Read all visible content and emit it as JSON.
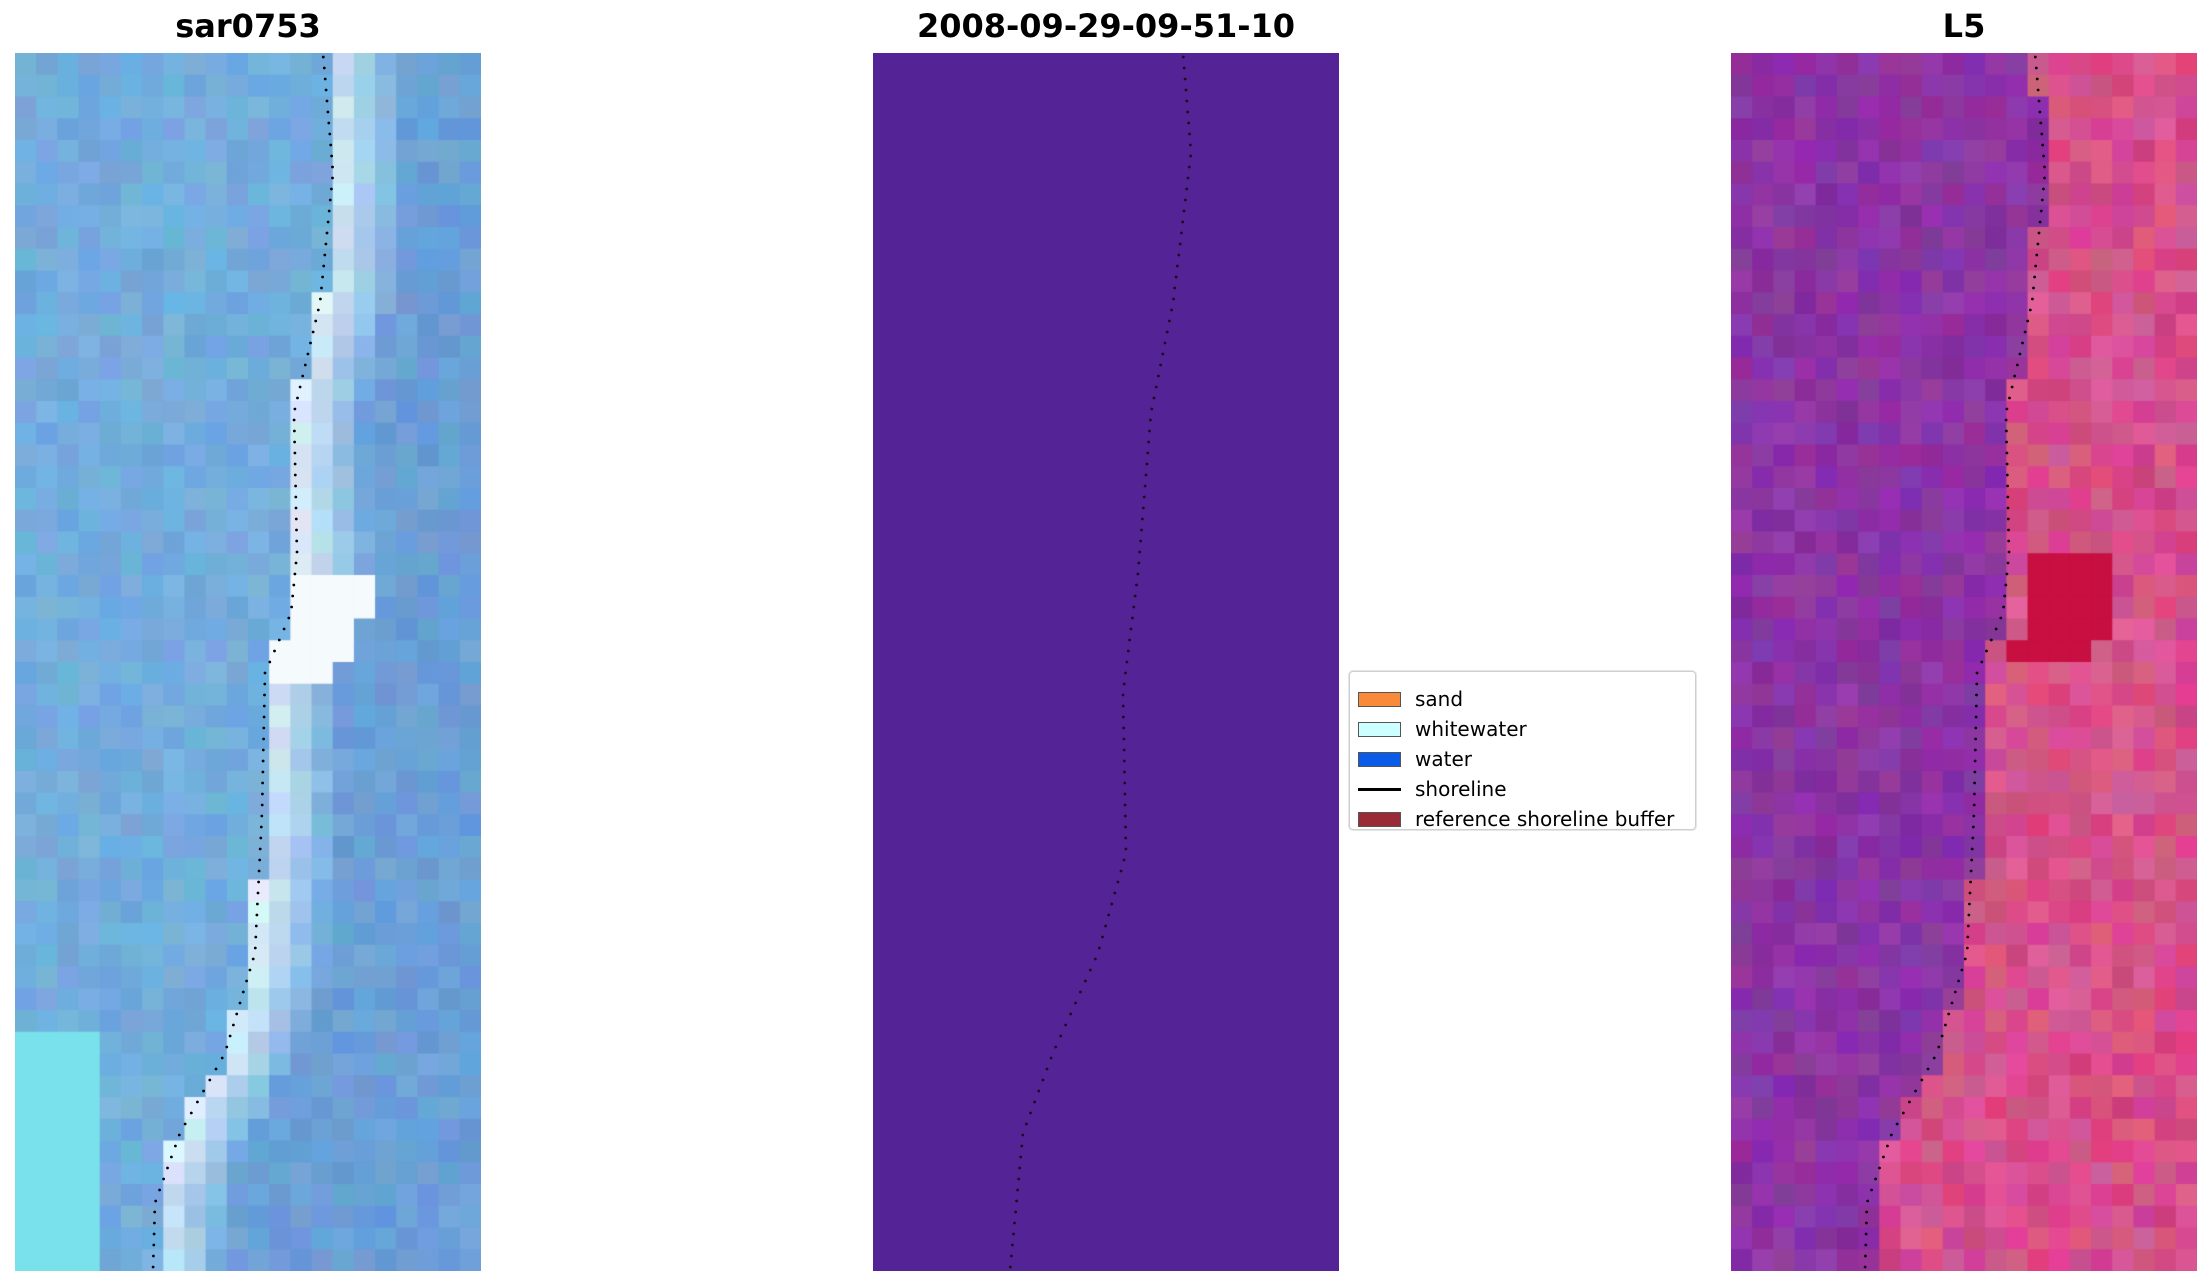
{
  "panels": [
    {
      "id": "rgb",
      "title": "sar0753"
    },
    {
      "id": "classified",
      "title": "2008-09-29-09-51-10"
    },
    {
      "id": "index",
      "title": "L5"
    }
  ],
  "legend": {
    "items": [
      {
        "label": "sand",
        "kind": "patch",
        "color": "#f98a3a"
      },
      {
        "label": "whitewater",
        "kind": "patch",
        "color": "#ccffff"
      },
      {
        "label": "water",
        "kind": "patch",
        "color": "#0a5ce8"
      },
      {
        "label": "shoreline",
        "kind": "line",
        "color": "#000000"
      },
      {
        "label": "reference shoreline buffer",
        "kind": "patch",
        "color": "#9a2a36"
      }
    ]
  },
  "colors": {
    "classified_fill": "#542396",
    "shoreline_dots": "#000000",
    "rgb_base": "#6ea6d8",
    "index_base": "#8a3aa6"
  }
}
